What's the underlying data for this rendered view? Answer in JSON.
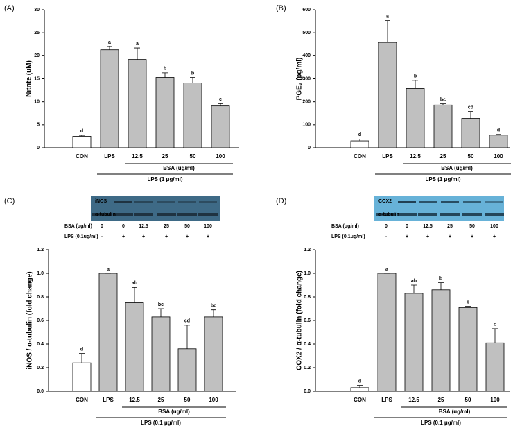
{
  "chart_data": [
    {
      "type": "bar",
      "panel_label": "(A)",
      "y_label": "Nitrite (uM)",
      "categories": [
        "CON",
        "LPS",
        "12.5",
        "25",
        "50",
        "100"
      ],
      "values": [
        2.5,
        21.3,
        19.2,
        15.3,
        14.1,
        9.1
      ],
      "errors": [
        0.2,
        0.7,
        2.5,
        1.0,
        1.2,
        0.5
      ],
      "annotations": [
        "d",
        "a",
        "a",
        "b",
        "b",
        "c"
      ],
      "colors": [
        "#ffffff",
        "#c0c0c0",
        "#c0c0c0",
        "#c0c0c0",
        "#c0c0c0",
        "#c0c0c0"
      ],
      "ylim": [
        0,
        30
      ],
      "yticks": [
        0,
        5,
        10,
        15,
        20,
        25,
        30
      ],
      "bracket_labels": [
        "BSA (ug/ml)",
        "LPS (1 μg/ml)"
      ]
    },
    {
      "type": "bar",
      "panel_label": "(B)",
      "y_label": "PGE₂ (pg/ml)",
      "categories": [
        "CON",
        "LPS",
        "12.5",
        "25",
        "50",
        "100"
      ],
      "values": [
        30,
        458,
        258,
        186,
        128,
        55
      ],
      "errors": [
        8,
        95,
        35,
        5,
        30,
        3
      ],
      "annotations": [
        "d",
        "a",
        "b",
        "bc",
        "cd",
        "d"
      ],
      "colors": [
        "#ffffff",
        "#c0c0c0",
        "#c0c0c0",
        "#c0c0c0",
        "#c0c0c0",
        "#c0c0c0"
      ],
      "ylim": [
        0,
        600
      ],
      "yticks": [
        0,
        100,
        200,
        300,
        400,
        500,
        600
      ],
      "bracket_labels": [
        "BSA (ug/ml)",
        "LPS (1 μg/ml)"
      ]
    },
    {
      "type": "bar",
      "panel_label": "(C)",
      "y_label": "iNOS / α-tubulin (fold change)",
      "categories": [
        "CON",
        "LPS",
        "12.5",
        "25",
        "50",
        "100"
      ],
      "values": [
        0.24,
        1.0,
        0.75,
        0.63,
        0.36,
        0.63
      ],
      "errors": [
        0.08,
        0,
        0.13,
        0.07,
        0.2,
        0.06
      ],
      "annotations": [
        "d",
        "a",
        "ab",
        "bc",
        "cd",
        "bc"
      ],
      "colors": [
        "#ffffff",
        "#c0c0c0",
        "#c0c0c0",
        "#c0c0c0",
        "#c0c0c0",
        "#c0c0c0"
      ],
      "ylim": [
        0,
        1.2
      ],
      "yticks": [
        {
          "value": 0,
          "label": "0.0"
        },
        0.2,
        0.4,
        0.6,
        0.8,
        {
          "value": 1,
          "label": "1.0"
        },
        1.2
      ],
      "bracket_labels": [
        "BSA (ug/ml)",
        "LPS (0.1 μg/ml)"
      ],
      "blot": {
        "bands": [
          "iNOS",
          "α-tubulin"
        ],
        "rows": [
          {
            "label": "BSA (ug/ml)",
            "values": [
              "0",
              "0",
              "12.5",
              "25",
              "50",
              "100"
            ]
          },
          {
            "label": "LPS (0.1ug/ml)",
            "values": [
              "-",
              "+",
              "+",
              "+",
              "+",
              "+"
            ]
          }
        ]
      }
    },
    {
      "type": "bar",
      "panel_label": "(D)",
      "y_label": "COX2 / α-tubulin (fold change)",
      "categories": [
        "CON",
        "LPS",
        "12.5",
        "25",
        "50",
        "100"
      ],
      "values": [
        0.03,
        1.0,
        0.83,
        0.86,
        0.71,
        0.41
      ],
      "errors": [
        0.02,
        0,
        0.07,
        0.06,
        0.01,
        0.12
      ],
      "annotations": [
        "d",
        "a",
        "ab",
        "b",
        "b",
        "c"
      ],
      "colors": [
        "#ffffff",
        "#c0c0c0",
        "#c0c0c0",
        "#c0c0c0",
        "#c0c0c0",
        "#c0c0c0"
      ],
      "ylim": [
        0,
        1.2
      ],
      "yticks": [
        {
          "value": 0,
          "label": "0.0"
        },
        0.2,
        0.4,
        0.6,
        0.8,
        {
          "value": 1,
          "label": "1.0"
        },
        1.2
      ],
      "bracket_labels": [
        "BSA (ug/ml)",
        "LPS (0.1 μg/ml)"
      ],
      "blot": {
        "bands": [
          "COX2",
          "α-tubulin"
        ],
        "rows": [
          {
            "label": "BSA (ug/ml)",
            "values": [
              "0",
              "0",
              "12.5",
              "25",
              "50",
              "100"
            ]
          },
          {
            "label": "LPS (0.1ug/ml)",
            "values": [
              "-",
              "+",
              "+",
              "+",
              "+",
              "+"
            ]
          }
        ]
      }
    }
  ]
}
